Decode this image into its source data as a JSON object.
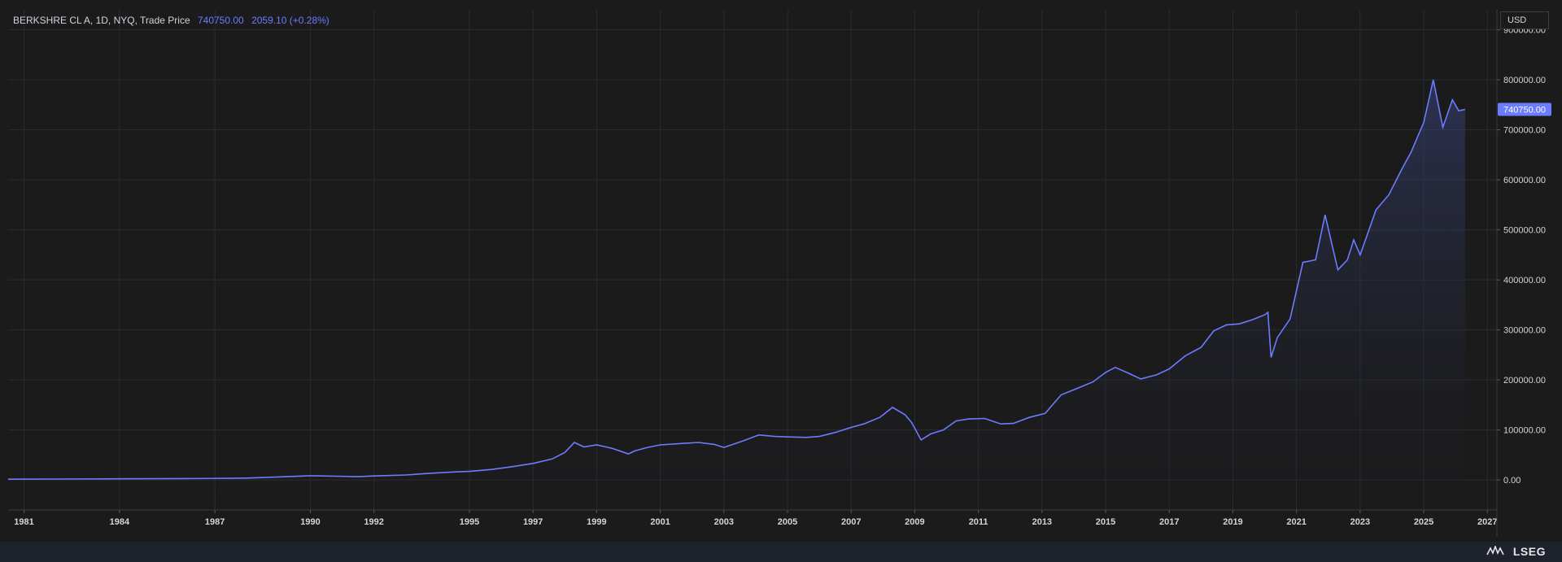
{
  "header": {
    "instrument": "BERKSHRE CL A, 1D, NYQ, Trade Price",
    "last_price": "740750.00",
    "change": "2059.10 (+0.28%)"
  },
  "axis": {
    "currency": "USD",
    "current_price_tag": "740750.00"
  },
  "brand": {
    "name": "LSEG"
  },
  "colors": {
    "background": "#1b1b1c",
    "line": "#6b7cff",
    "grid": "#2a2c33",
    "text": "#d1d4dc"
  },
  "chart_data": {
    "type": "area",
    "title": "BERKSHRE CL A, 1D, NYQ, Trade Price",
    "xlabel": "",
    "ylabel": "",
    "xlim": [
      1980.5,
      2027.3
    ],
    "ylim": [
      -60000,
      940000
    ],
    "x_ticks": [
      1981,
      1984,
      1987,
      1990,
      1992,
      1995,
      1997,
      1999,
      2001,
      2003,
      2005,
      2007,
      2009,
      2011,
      2013,
      2015,
      2017,
      2019,
      2021,
      2023,
      2025,
      2027
    ],
    "y_ticks": [
      0,
      100000,
      200000,
      300000,
      400000,
      500000,
      600000,
      700000,
      800000,
      900000
    ],
    "y_tick_labels": [
      "0.00",
      "100000.00",
      "200000.00",
      "300000.00",
      "400000.00",
      "500000.00",
      "600000.00",
      "700000.00",
      "800000.00",
      "900000.00"
    ],
    "grid": true,
    "series": [
      {
        "x": [
          1980.5,
          1982,
          1984,
          1986,
          1987.5,
          1988,
          1989,
          1990,
          1990.8,
          1991.5,
          1992,
          1993,
          1993.7,
          1994.5,
          1995,
          1995.7,
          1996.3,
          1997,
          1997.6,
          1998.0,
          1998.3,
          1998.6,
          1999.0,
          1999.5,
          2000.0,
          2000.2,
          2000.6,
          2001.0,
          2001.7,
          2002.2,
          2002.7,
          2003.0,
          2003.6,
          2004.1,
          2004.6,
          2005.0,
          2005.6,
          2006.0,
          2006.5,
          2007.0,
          2007.4,
          2007.9,
          2008.3,
          2008.7,
          2008.9,
          2009.2,
          2009.5,
          2009.9,
          2010.3,
          2010.7,
          2011.2,
          2011.7,
          2012.1,
          2012.6,
          2013.1,
          2013.6,
          2014.1,
          2014.6,
          2015.0,
          2015.3,
          2015.7,
          2016.1,
          2016.6,
          2017.0,
          2017.5,
          2018.0,
          2018.4,
          2018.8,
          2019.2,
          2019.6,
          2020.0,
          2020.1,
          2020.2,
          2020.4,
          2020.8,
          2021.2,
          2021.6,
          2021.9,
          2022.3,
          2022.6,
          2022.8,
          2023.0,
          2023.5,
          2023.9,
          2024.3,
          2024.6,
          2025.0,
          2025.3,
          2025.6,
          2025.9,
          2026.1,
          2026.3
        ],
        "values": [
          1500,
          1800,
          2200,
          2800,
          3300,
          3800,
          6000,
          8500,
          7500,
          6500,
          8000,
          10000,
          13000,
          16000,
          17000,
          21000,
          26000,
          33000,
          42000,
          55000,
          75000,
          66000,
          70000,
          63000,
          52000,
          58000,
          65000,
          70000,
          73000,
          75000,
          71000,
          65000,
          78000,
          90000,
          87000,
          86000,
          85000,
          87000,
          95000,
          105000,
          112000,
          125000,
          145000,
          130000,
          115000,
          80000,
          92000,
          100000,
          118000,
          122000,
          123000,
          112000,
          113000,
          125000,
          133000,
          170000,
          183000,
          196000,
          215000,
          225000,
          214000,
          202000,
          210000,
          222000,
          248000,
          265000,
          298000,
          310000,
          312000,
          320000,
          330000,
          335000,
          245000,
          285000,
          322000,
          435000,
          440000,
          530000,
          420000,
          440000,
          480000,
          450000,
          540000,
          570000,
          620000,
          655000,
          715000,
          800000,
          705000,
          760000,
          738000,
          740750
        ]
      }
    ]
  }
}
